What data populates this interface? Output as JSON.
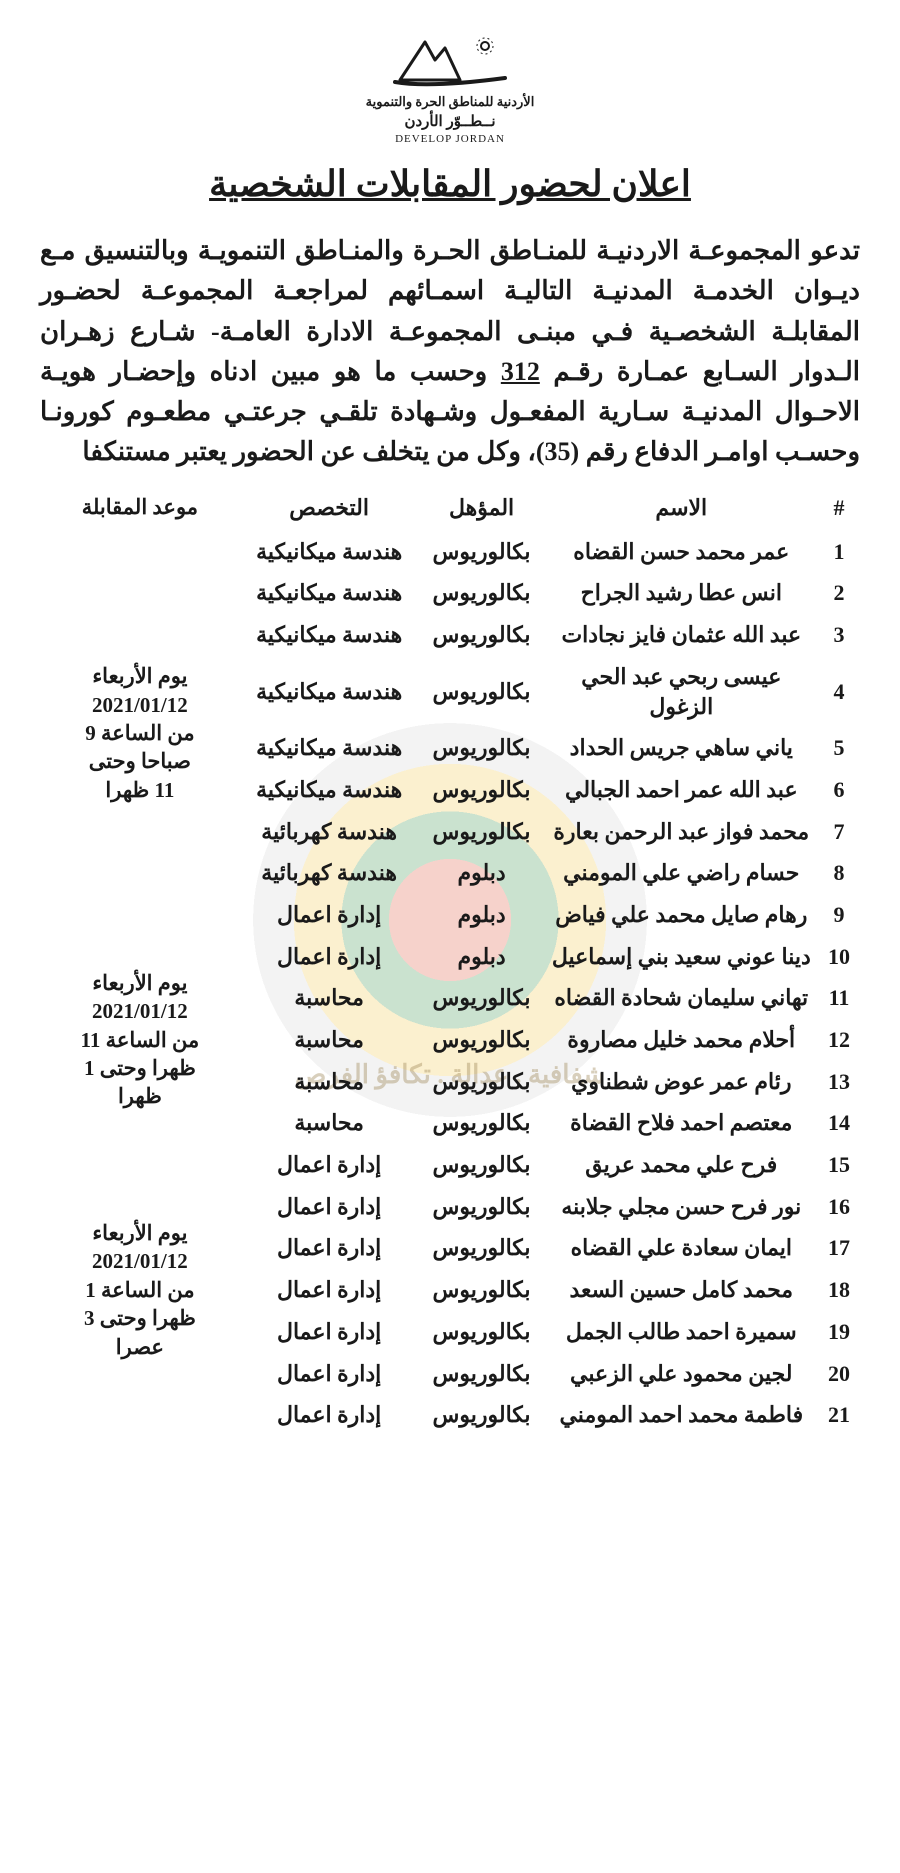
{
  "logo": {
    "line1_ar": "الأردنية للمناطق الحرة والتنموية",
    "line2_ar": "نــطــوّر الأردن",
    "line3_en": "DEVELOP JORDAN"
  },
  "title": "اعلان لحضور المقابلات الشخصية",
  "watermark_text": "شفافية . عدالة . تكافؤ الفرص",
  "body_html": "تدعو المجموعـة الاردنيـة للمنـاطق الحـرة والمنـاطق التنمويـة وبالتنسيق مـع ديـوان الخدمـة المدنيـة التاليـة اسمـائهم لمراجعـة المجموعـة لحضـور المقابلـة الشخصـية فـي مبنـى المجموعـة الادارة العامـة- شـارع زهـران الـدوار السـابع عمـارة رقـم <span class=\"num\">312</span> وحسب ما هو مبين ادناه وإحضـار هويـة الاحـوال المدنيـة سـارية المفعـول وشـهادة تلقـي جرعتـي مطعـوم كورونـا وحسـب اوامـر الدفاع رقم (35)، وكل من يتخلف عن الحضور يعتبر مستنكفا",
  "columns": {
    "num": "#",
    "name": "الاسم",
    "qual": "المؤهل",
    "spec": "التخصص",
    "slot": "موعد المقابلة"
  },
  "slots": [
    {
      "lines": [
        "يوم الأربعاء",
        "2021/01/12",
        "من الساعة 9",
        "صباحا وحتى",
        "11 ظهرا"
      ],
      "start": 1,
      "span": 9
    },
    {
      "lines": [
        "يوم الأربعاء",
        "2021/01/12",
        "من الساعة 11",
        "ظهرا وحتى 1",
        "ظهرا"
      ],
      "start": 10,
      "span": 5
    },
    {
      "lines": [
        "يوم الأربعاء",
        "2021/01/12",
        "من الساعة 1",
        "ظهرا وحتى 3",
        "عصرا"
      ],
      "start": 15,
      "span": 7
    }
  ],
  "rows": [
    {
      "n": 1,
      "name": "عمر محمد حسن القضاه",
      "qual": "بكالوريوس",
      "spec": "هندسة ميكانيكية"
    },
    {
      "n": 2,
      "name": "انس عطا رشيد الجراح",
      "qual": "بكالوريوس",
      "spec": "هندسة ميكانيكية"
    },
    {
      "n": 3,
      "name": "عبد الله عثمان فايز نجادات",
      "qual": "بكالوريوس",
      "spec": "هندسة ميكانيكية"
    },
    {
      "n": 4,
      "name": "عيسى ربحي عبد الحي الزغول",
      "qual": "بكالوريوس",
      "spec": "هندسة ميكانيكية"
    },
    {
      "n": 5,
      "name": "ياني ساهي جريس الحداد",
      "qual": "بكالوريوس",
      "spec": "هندسة ميكانيكية"
    },
    {
      "n": 6,
      "name": "عبد الله عمر احمد الجبالي",
      "qual": "بكالوريوس",
      "spec": "هندسة ميكانيكية"
    },
    {
      "n": 7,
      "name": "محمد فواز عبد الرحمن بعارة",
      "qual": "بكالوريوس",
      "spec": "هندسة كهربائية"
    },
    {
      "n": 8,
      "name": "حسام راضي علي المومني",
      "qual": "دبلوم",
      "spec": "هندسة كهربائية"
    },
    {
      "n": 9,
      "name": "رهام صايل محمد علي فياض",
      "qual": "دبلوم",
      "spec": "إدارة اعمال"
    },
    {
      "n": 10,
      "name": "دينا عوني سعيد بني إسماعيل",
      "qual": "دبلوم",
      "spec": "إدارة اعمال"
    },
    {
      "n": 11,
      "name": "تهاني سليمان شحادة القضاه",
      "qual": "بكالوريوس",
      "spec": "محاسبة"
    },
    {
      "n": 12,
      "name": "أحلام محمد خليل مصاروة",
      "qual": "بكالوريوس",
      "spec": "محاسبة"
    },
    {
      "n": 13,
      "name": "رئام عمر عوض شطناوي",
      "qual": "بكالوريوس",
      "spec": "محاسبة"
    },
    {
      "n": 14,
      "name": "معتصم احمد فلاح القضاة",
      "qual": "بكالوريوس",
      "spec": "محاسبة"
    },
    {
      "n": 15,
      "name": "فرح علي محمد عريق",
      "qual": "بكالوريوس",
      "spec": "إدارة اعمال"
    },
    {
      "n": 16,
      "name": "نور فرح حسن مجلي جلابنه",
      "qual": "بكالوريوس",
      "spec": "إدارة اعمال"
    },
    {
      "n": 17,
      "name": "ايمان سعادة علي القضاه",
      "qual": "بكالوريوس",
      "spec": "إدارة اعمال"
    },
    {
      "n": 18,
      "name": "محمد كامل حسين السعد",
      "qual": "بكالوريوس",
      "spec": "إدارة اعمال"
    },
    {
      "n": 19,
      "name": "سميرة احمد طالب الجمل",
      "qual": "بكالوريوس",
      "spec": "إدارة اعمال"
    },
    {
      "n": 20,
      "name": "لجين محمود علي الزعبي",
      "qual": "بكالوريوس",
      "spec": "إدارة اعمال"
    },
    {
      "n": 21,
      "name": "فاطمة محمد احمد المومني",
      "qual": "بكالوريوس",
      "spec": "إدارة اعمال"
    }
  ]
}
